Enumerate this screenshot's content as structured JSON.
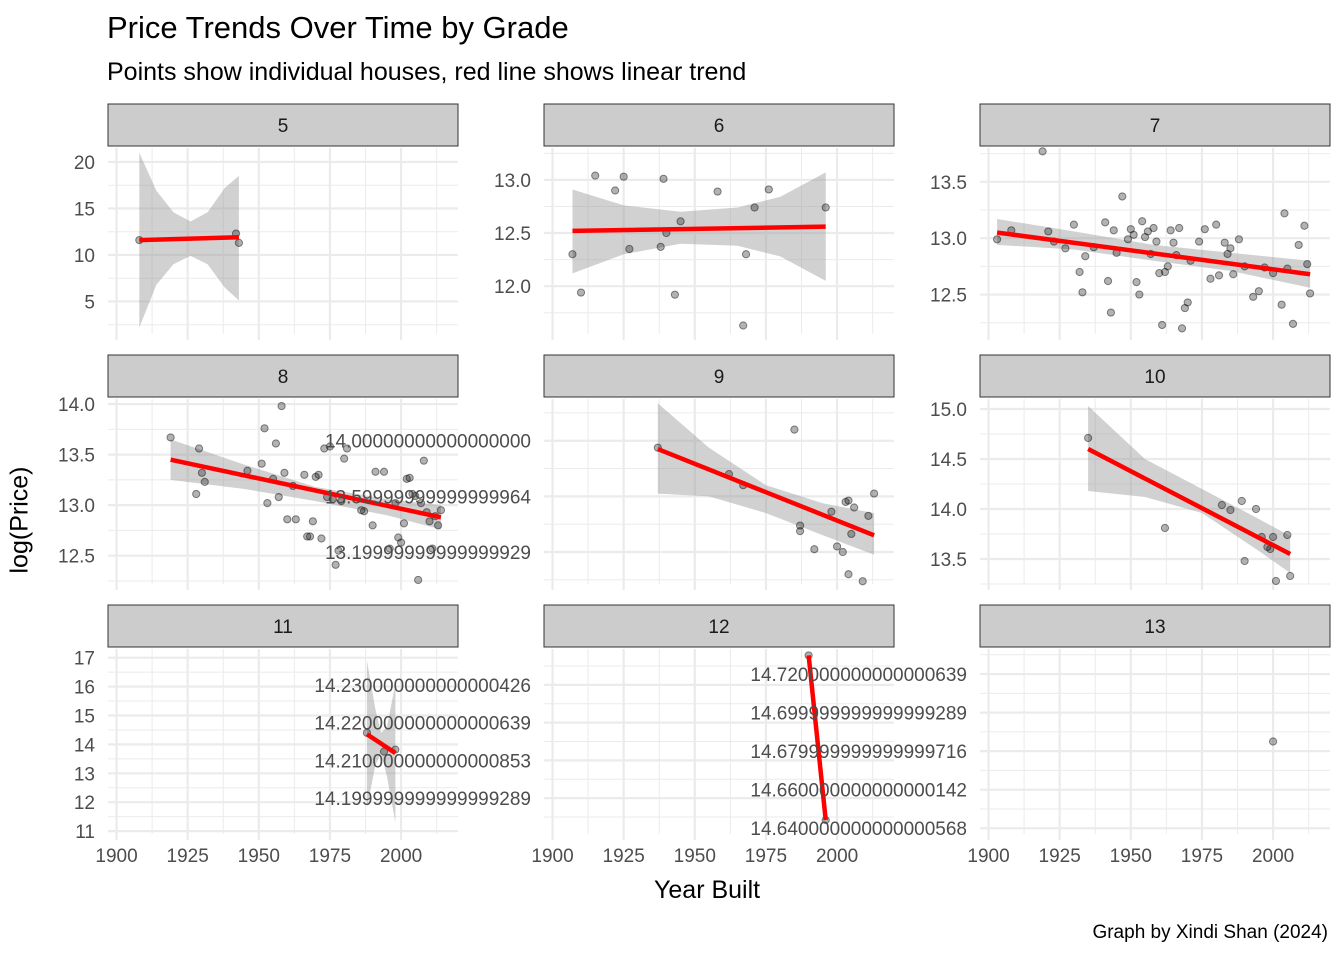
{
  "title": "Price Trends Over Time by Grade",
  "subtitle": "Points show individual houses, red line shows linear trend",
  "caption": "Graph by Xindi Shan (2024)",
  "colors": {
    "trend_line": "#ff0000",
    "points": "#000000",
    "ribbon": "#999999",
    "strip_fill": "#cccccc",
    "grid": "#ebebeb"
  },
  "chart_data": {
    "type": "scatter",
    "xlabel": "Year Built",
    "ylabel": "log(Price)",
    "grid": true,
    "xlim": [
      1897,
      2020
    ],
    "x_ticks": [
      1900,
      1925,
      1950,
      1975,
      2000
    ],
    "facets": [
      {
        "label": "5",
        "ylim": [
          1.5,
          21.5
        ],
        "y_ticks": [
          5,
          10,
          15,
          20
        ],
        "points": [
          [
            1908,
            11.6
          ],
          [
            1942,
            12.3
          ],
          [
            1943,
            11.3
          ]
        ],
        "trend": [
          [
            1908,
            11.6
          ],
          [
            1943,
            11.9
          ]
        ],
        "ribbon": [
          [
            1908,
            2.2,
            21.0
          ],
          [
            1914,
            6.8,
            16.9
          ],
          [
            1920,
            9.0,
            14.6
          ],
          [
            1926,
            9.9,
            13.6
          ],
          [
            1932,
            9.0,
            14.6
          ],
          [
            1938,
            6.5,
            17.2
          ],
          [
            1943,
            5.1,
            18.5
          ]
        ]
      },
      {
        "label": "6",
        "ylim": [
          11.55,
          13.3
        ],
        "y_ticks": [
          12.0,
          12.5,
          13.0
        ],
        "points": [
          [
            1907,
            12.3
          ],
          [
            1910,
            11.94
          ],
          [
            1915,
            13.04
          ],
          [
            1922,
            12.9
          ],
          [
            1925,
            13.03
          ],
          [
            1927,
            12.35
          ],
          [
            1938,
            12.37
          ],
          [
            1939,
            13.01
          ],
          [
            1940,
            12.5
          ],
          [
            1943,
            11.92
          ],
          [
            1945,
            12.61
          ],
          [
            1958,
            12.89
          ],
          [
            1967,
            11.63
          ],
          [
            1968,
            12.3
          ],
          [
            1971,
            12.74
          ],
          [
            1976,
            12.91
          ],
          [
            1996,
            12.74
          ]
        ],
        "trend": [
          [
            1907,
            12.52
          ],
          [
            1996,
            12.56
          ]
        ],
        "ribbon": [
          [
            1907,
            12.12,
            12.91
          ],
          [
            1925,
            12.3,
            12.76
          ],
          [
            1945,
            12.4,
            12.7
          ],
          [
            1965,
            12.38,
            12.74
          ],
          [
            1980,
            12.28,
            12.84
          ],
          [
            1996,
            12.05,
            13.07
          ]
        ]
      },
      {
        "label": "7",
        "ylim": [
          12.15,
          13.8
        ],
        "y_ticks": [
          12.5,
          13.0,
          13.5
        ],
        "points": [
          [
            1903,
            12.99
          ],
          [
            1908,
            13.07
          ],
          [
            1919,
            13.77
          ],
          [
            1921,
            13.06
          ],
          [
            1923,
            12.97
          ],
          [
            1927,
            12.91
          ],
          [
            1930,
            13.12
          ],
          [
            1932,
            12.7
          ],
          [
            1933,
            12.52
          ],
          [
            1934,
            12.84
          ],
          [
            1937,
            12.92
          ],
          [
            1941,
            13.14
          ],
          [
            1942,
            12.62
          ],
          [
            1943,
            12.34
          ],
          [
            1944,
            13.07
          ],
          [
            1945,
            12.87
          ],
          [
            1947,
            13.37
          ],
          [
            1949,
            12.99
          ],
          [
            1950,
            13.08
          ],
          [
            1951,
            13.03
          ],
          [
            1952,
            12.61
          ],
          [
            1953,
            12.5
          ],
          [
            1954,
            13.15
          ],
          [
            1955,
            13.01
          ],
          [
            1956,
            13.06
          ],
          [
            1957,
            12.86
          ],
          [
            1958,
            13.09
          ],
          [
            1959,
            12.97
          ],
          [
            1960,
            12.69
          ],
          [
            1961,
            12.23
          ],
          [
            1962,
            12.7
          ],
          [
            1963,
            12.75
          ],
          [
            1964,
            13.07
          ],
          [
            1965,
            12.96
          ],
          [
            1966,
            12.85
          ],
          [
            1967,
            13.09
          ],
          [
            1968,
            12.2
          ],
          [
            1969,
            12.38
          ],
          [
            1970,
            12.43
          ],
          [
            1971,
            12.8
          ],
          [
            1974,
            12.97
          ],
          [
            1976,
            13.08
          ],
          [
            1978,
            12.64
          ],
          [
            1980,
            13.12
          ],
          [
            1981,
            12.67
          ],
          [
            1983,
            12.96
          ],
          [
            1984,
            12.86
          ],
          [
            1985,
            12.91
          ],
          [
            1986,
            12.68
          ],
          [
            1988,
            12.99
          ],
          [
            1990,
            12.75
          ],
          [
            1993,
            12.48
          ],
          [
            1995,
            12.53
          ],
          [
            1997,
            12.74
          ],
          [
            2000,
            12.69
          ],
          [
            2003,
            12.41
          ],
          [
            2004,
            13.22
          ],
          [
            2005,
            12.73
          ],
          [
            2007,
            12.24
          ],
          [
            2009,
            12.94
          ],
          [
            2011,
            13.11
          ],
          [
            2012,
            12.77
          ],
          [
            2013,
            12.51
          ]
        ],
        "trend": [
          [
            1903,
            13.05
          ],
          [
            2013,
            12.68
          ]
        ],
        "ribbon": [
          [
            1903,
            12.94,
            13.17
          ],
          [
            1930,
            12.9,
            13.06
          ],
          [
            1958,
            12.8,
            12.94
          ],
          [
            1985,
            12.71,
            12.87
          ],
          [
            2013,
            12.56,
            12.8
          ]
        ]
      },
      {
        "label": "8",
        "ylim": [
          12.22,
          14.05
        ],
        "y_ticks": [
          12.5,
          13.0,
          13.5,
          14.0
        ],
        "points": [
          [
            1919,
            13.67
          ],
          [
            1928,
            13.11
          ],
          [
            1929,
            13.56
          ],
          [
            1930,
            13.32
          ],
          [
            1931,
            13.23
          ],
          [
            1946,
            13.34
          ],
          [
            1951,
            13.41
          ],
          [
            1952,
            13.76
          ],
          [
            1953,
            13.02
          ],
          [
            1955,
            13.26
          ],
          [
            1956,
            13.61
          ],
          [
            1957,
            13.08
          ],
          [
            1958,
            13.98
          ],
          [
            1959,
            13.32
          ],
          [
            1960,
            12.86
          ],
          [
            1962,
            13.19
          ],
          [
            1963,
            12.86
          ],
          [
            1966,
            13.3
          ],
          [
            1967,
            12.69
          ],
          [
            1968,
            12.69
          ],
          [
            1969,
            12.84
          ],
          [
            1970,
            13.28
          ],
          [
            1971,
            13.3
          ],
          [
            1972,
            12.67
          ],
          [
            1973,
            13.56
          ],
          [
            1974,
            13.08
          ],
          [
            1975,
            13.58
          ],
          [
            1976,
            13.06
          ],
          [
            1977,
            12.41
          ],
          [
            1978,
            12.55
          ],
          [
            1979,
            13.04
          ],
          [
            1980,
            13.46
          ],
          [
            1981,
            13.56
          ],
          [
            1986,
            12.95
          ],
          [
            1987,
            12.94
          ],
          [
            1990,
            12.8
          ],
          [
            1991,
            13.33
          ],
          [
            1994,
            13.33
          ],
          [
            1996,
            12.57
          ],
          [
            1998,
            13.02
          ],
          [
            1999,
            12.68
          ],
          [
            2000,
            12.63
          ],
          [
            2001,
            12.82
          ],
          [
            2002,
            13.26
          ],
          [
            2003,
            13.27
          ],
          [
            2004,
            13.11
          ],
          [
            2005,
            13.09
          ],
          [
            2006,
            12.26
          ],
          [
            2007,
            13.02
          ],
          [
            2008,
            13.44
          ],
          [
            2009,
            12.93
          ],
          [
            2010,
            12.84
          ],
          [
            2011,
            12.57
          ],
          [
            2012,
            12.89
          ],
          [
            2013,
            12.8
          ],
          [
            2014,
            12.95
          ]
        ],
        "trend": [
          [
            1919,
            13.45
          ],
          [
            2014,
            12.88
          ]
        ],
        "ribbon": [
          [
            1919,
            13.25,
            13.65
          ],
          [
            1945,
            13.16,
            13.4
          ],
          [
            1970,
            13.04,
            13.18
          ],
          [
            1995,
            12.9,
            13.06
          ],
          [
            2014,
            12.76,
            13.0
          ]
        ]
      },
      {
        "label": "9",
        "ylim": [
          12.97,
          14.3
        ],
        "y_ticks": [
          13.2,
          13.6,
          14.0
        ],
        "points": [
          [
            1937,
            13.95
          ],
          [
            1962,
            13.76
          ],
          [
            1967,
            13.68
          ],
          [
            1985,
            14.08
          ],
          [
            1987,
            13.39
          ],
          [
            1987,
            13.35
          ],
          [
            1992,
            13.22
          ],
          [
            1998,
            13.49
          ],
          [
            2000,
            13.24
          ],
          [
            2002,
            13.2
          ],
          [
            2003,
            13.56
          ],
          [
            2004,
            13.57
          ],
          [
            2004,
            13.04
          ],
          [
            2005,
            13.33
          ],
          [
            2006,
            13.52
          ],
          [
            2009,
            12.99
          ],
          [
            2011,
            13.46
          ],
          [
            2013,
            13.62
          ]
        ],
        "trend": [
          [
            1937,
            13.94
          ],
          [
            2013,
            13.32
          ]
        ],
        "ribbon": [
          [
            1937,
            13.62,
            14.27
          ],
          [
            1955,
            13.6,
            13.95
          ],
          [
            1975,
            13.48,
            13.68
          ],
          [
            1995,
            13.32,
            13.55
          ],
          [
            2013,
            13.18,
            13.48
          ]
        ]
      },
      {
        "label": "10",
        "ylim": [
          13.25,
          15.1
        ],
        "y_ticks": [
          13.5,
          14.0,
          14.5,
          15.0
        ],
        "points": [
          [
            1935,
            14.71
          ],
          [
            1962,
            13.81
          ],
          [
            1982,
            14.04
          ],
          [
            1985,
            13.99
          ],
          [
            1989,
            14.08
          ],
          [
            1990,
            13.48
          ],
          [
            1994,
            14.0
          ],
          [
            1996,
            13.72
          ],
          [
            1998,
            13.62
          ],
          [
            1999,
            13.6
          ],
          [
            2000,
            13.72
          ],
          [
            2001,
            13.28
          ],
          [
            2005,
            13.74
          ],
          [
            2006,
            13.33
          ]
        ],
        "trend": [
          [
            1935,
            14.6
          ],
          [
            2006,
            13.55
          ]
        ],
        "ribbon": [
          [
            1935,
            14.18,
            15.03
          ],
          [
            1955,
            14.12,
            14.5
          ],
          [
            1975,
            13.96,
            14.2
          ],
          [
            1995,
            13.58,
            13.9
          ],
          [
            2006,
            13.36,
            13.73
          ]
        ]
      },
      {
        "label": "11",
        "ylim": [
          10.9,
          17.3
        ],
        "y_ticks": [
          11,
          12,
          13,
          14,
          15,
          16,
          17
        ],
        "points": [
          [
            1988,
            14.4
          ],
          [
            1994,
            13.75
          ],
          [
            1998,
            13.82
          ]
        ],
        "trend": [
          [
            1988,
            14.35
          ],
          [
            1998,
            13.7
          ]
        ],
        "ribbon": [
          [
            1988,
            11.8,
            16.9
          ],
          [
            1991,
            13.3,
            15.2
          ],
          [
            1993,
            13.7,
            14.4
          ],
          [
            1995,
            12.9,
            14.6
          ],
          [
            1998,
            11.3,
            16.1
          ]
        ]
      },
      {
        "label": "12",
        "ylim": [
          14.1905,
          14.2395
        ],
        "y_ticks": [
          14.2,
          14.21,
          14.22,
          14.23
        ],
        "points": [
          [
            1990,
            14.2378
          ],
          [
            1996,
            14.1942
          ]
        ],
        "trend": [
          [
            1990,
            14.2378
          ],
          [
            1996,
            14.1942
          ]
        ],
        "ribbon": []
      },
      {
        "label": "13",
        "ylim": [
          14.637,
          14.733
        ],
        "y_ticks": [
          14.64,
          14.66,
          14.68,
          14.7,
          14.72
        ],
        "points": [
          [
            2000,
            14.685
          ]
        ],
        "trend": [],
        "ribbon": []
      }
    ]
  }
}
